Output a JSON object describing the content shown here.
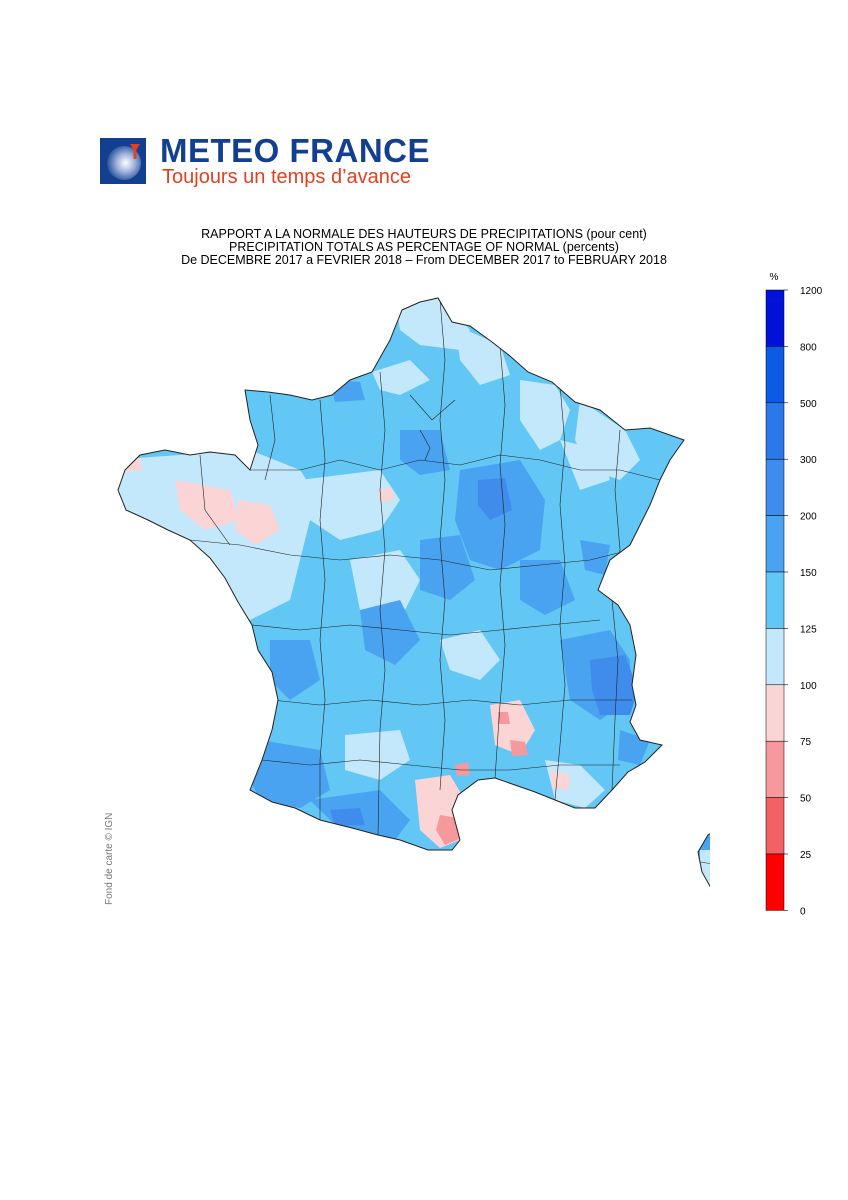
{
  "header": {
    "brand": "METEO FRANCE",
    "tagline": "Toujours un temps d’avance"
  },
  "map": {
    "title_line1": "RAPPORT A LA NORMALE DES HAUTEURS DE PRECIPITATIONS (pour cent)",
    "title_line2": "PRECIPITATION TOTALS AS PERCENTAGE OF NORMAL (percents)",
    "title_line3": "De DECEMBRE 2017 a FEVRIER 2018 – From DECEMBER 2017 to FEBRUARY 2018",
    "credit": "Fond de carte © IGN"
  },
  "legend": {
    "unit": "%",
    "levels": [
      {
        "label": "1200",
        "color": "#0012d8"
      },
      {
        "label": "800",
        "color": "#0a5be6"
      },
      {
        "label": "500",
        "color": "#2b78ea"
      },
      {
        "label": "300",
        "color": "#3f8ced"
      },
      {
        "label": "200",
        "color": "#4aa3f0"
      },
      {
        "label": "150",
        "color": "#62c7f4"
      },
      {
        "label": "125",
        "color": "#c4e8fb"
      },
      {
        "label": "100",
        "color": "#fbd4d6"
      },
      {
        "label": "75",
        "color": "#f6999c"
      },
      {
        "label": "50",
        "color": "#f26163"
      },
      {
        "label": "25",
        "color": "#ff0000"
      },
      {
        "label": "0",
        "color": ""
      }
    ]
  },
  "colors": {
    "brand_blue": "#123f8f",
    "brand_red": "#e2401f",
    "map_light_blue": "#c4e8fb",
    "map_mid_blue": "#62c7f4",
    "map_blue": "#4aa3f0",
    "map_dark_blue": "#3f8ced",
    "map_pink": "#fbd4d6",
    "map_red": "#f6999c",
    "boundary": "#222222"
  }
}
